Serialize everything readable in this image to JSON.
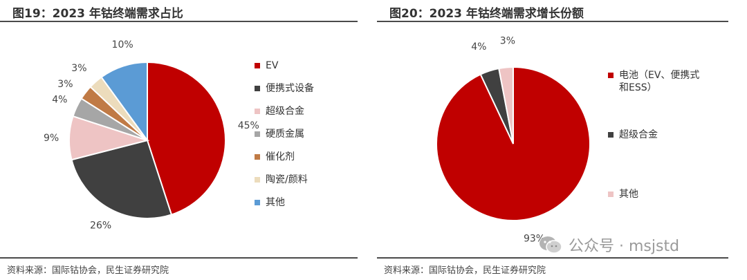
{
  "chart_data": [
    {
      "type": "pie",
      "title": "图19：2023 年钴终端需求占比",
      "categories": [
        "EV",
        "便携式设备",
        "超级合金",
        "硬质金属",
        "催化剂",
        "陶瓷/颜料",
        "其他"
      ],
      "values": [
        45,
        26,
        9,
        4,
        3,
        3,
        10
      ],
      "data_labels": [
        "45%",
        "26%",
        "9%",
        "4%",
        "3%",
        "3%",
        "10%"
      ],
      "colors": [
        "#c00000",
        "#404040",
        "#eec4c4",
        "#a6a6a6",
        "#c07a45",
        "#ecdcbc",
        "#5b9bd5"
      ],
      "legend_position": "right"
    },
    {
      "type": "pie",
      "title": "图20：2023 年钴终端需求增长份额",
      "categories": [
        "电池（EV、便携式和ESS）",
        "超级合金",
        "其他"
      ],
      "values": [
        93,
        4,
        3
      ],
      "data_labels": [
        "93%",
        "4%",
        "3%"
      ],
      "colors": [
        "#c00000",
        "#404040",
        "#eec4c4"
      ],
      "legend_position": "right"
    }
  ],
  "footer": {
    "left_source": "资料来源：国际钴协会，民生证券研究院",
    "right_source": "资料来源：国际钴协会，民生证券研究院"
  },
  "watermark": {
    "icon": "wechat-icon",
    "text": "公众号 · msjstd"
  }
}
